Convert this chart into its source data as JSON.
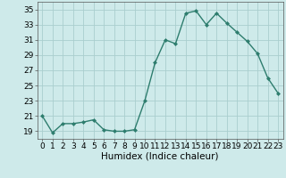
{
  "x": [
    0,
    1,
    2,
    3,
    4,
    5,
    6,
    7,
    8,
    9,
    10,
    11,
    12,
    13,
    14,
    15,
    16,
    17,
    18,
    19,
    20,
    21,
    22,
    23
  ],
  "y": [
    21,
    18.8,
    20,
    20,
    20.2,
    20.5,
    19.2,
    19,
    19,
    19.2,
    23,
    28,
    31,
    30.5,
    34.5,
    34.8,
    33,
    34.5,
    33.2,
    32,
    30.8,
    29.2,
    26,
    24
  ],
  "line_color": "#2e7d6e",
  "bg_color": "#ceeaea",
  "grid_color": "#aacece",
  "xlabel": "Humidex (Indice chaleur)",
  "ylim": [
    18,
    36
  ],
  "xlim": [
    -0.5,
    23.5
  ],
  "yticks": [
    19,
    21,
    23,
    25,
    27,
    29,
    31,
    33,
    35
  ],
  "xticks": [
    0,
    1,
    2,
    3,
    4,
    5,
    6,
    7,
    8,
    9,
    10,
    11,
    12,
    13,
    14,
    15,
    16,
    17,
    18,
    19,
    20,
    21,
    22,
    23
  ],
  "xlabel_fontsize": 7.5,
  "tick_fontsize": 6.5,
  "marker": "D",
  "marker_size": 2.0,
  "line_width": 1.0
}
